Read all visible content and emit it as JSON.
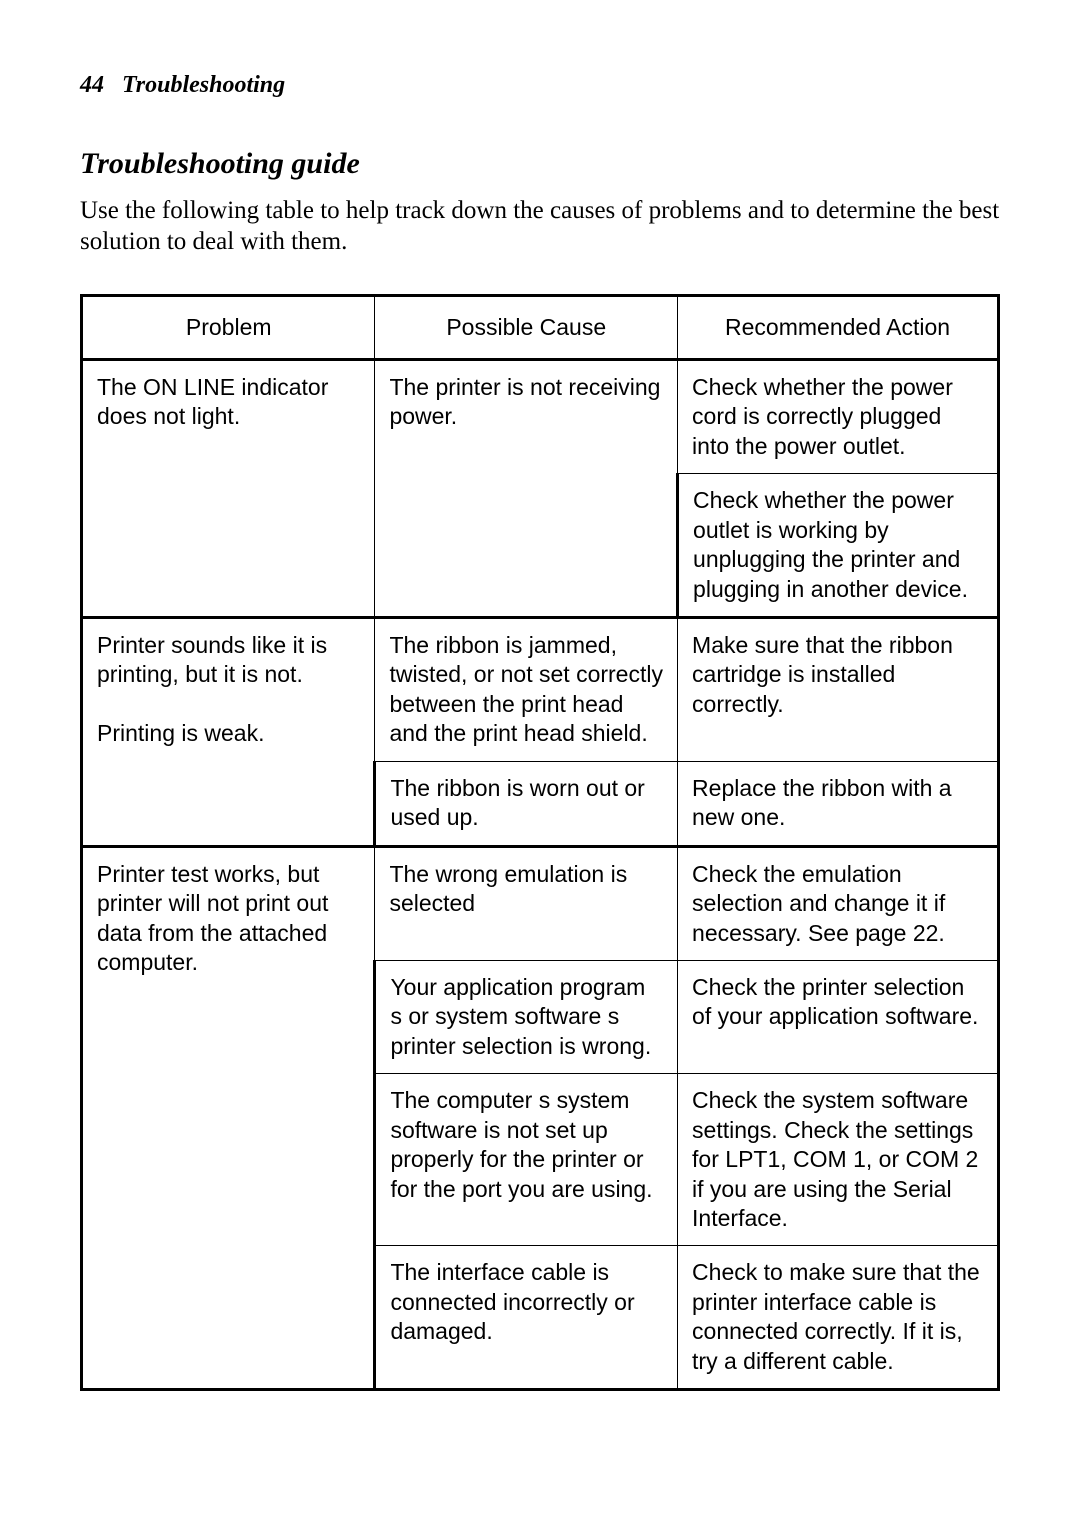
{
  "page": {
    "number": "44",
    "section": "Troubleshooting"
  },
  "heading": "Troubleshooting guide",
  "intro": "Use the following table to help track down the causes of problems and to determine the best solution to deal with them.",
  "table": {
    "columns": [
      "Problem",
      "Possible Cause",
      "Recommended Action"
    ],
    "groups": [
      {
        "problem": "The ON LINE indicator does not light.",
        "rows": [
          {
            "cause": "The printer is not receiving power.",
            "action": "Check whether the power cord is correctly plugged into the power outlet.",
            "cause_rowspan": 2
          },
          {
            "cause": null,
            "action": "Check whether the power outlet is working by unplugging the printer and plugging in another device."
          }
        ]
      },
      {
        "problem": "Printer sounds like it is printing, but it is not.\n\nPrinting is weak.",
        "rows": [
          {
            "cause": "The ribbon is jammed, twisted, or not set correctly between the print head and the print head shield.",
            "action": "Make sure that the ribbon cartridge is installed correctly."
          },
          {
            "cause": "The ribbon is worn out or used up.",
            "action": "Replace the ribbon with a new one."
          }
        ]
      },
      {
        "problem": "Printer test works, but printer will not print out data from the attached computer.",
        "rows": [
          {
            "cause": "The wrong emulation is selected",
            "action": "Check the emulation selection and change it if necessary. See page 22."
          },
          {
            "cause": "Your application program s or system software s printer selection is wrong.",
            "action": "Check the printer selection of your application software."
          },
          {
            "cause": "The computer s system software is not set up properly for the printer or for the port you are using.",
            "action": "Check the system software settings. Check the settings for LPT1, COM 1, or COM 2 if you are using the Serial Interface."
          },
          {
            "cause": "The interface cable is connected incorrectly or damaged.",
            "action": "Check to make sure that the printer interface cable is connected correctly. If it is, try a different cable."
          }
        ]
      }
    ]
  }
}
